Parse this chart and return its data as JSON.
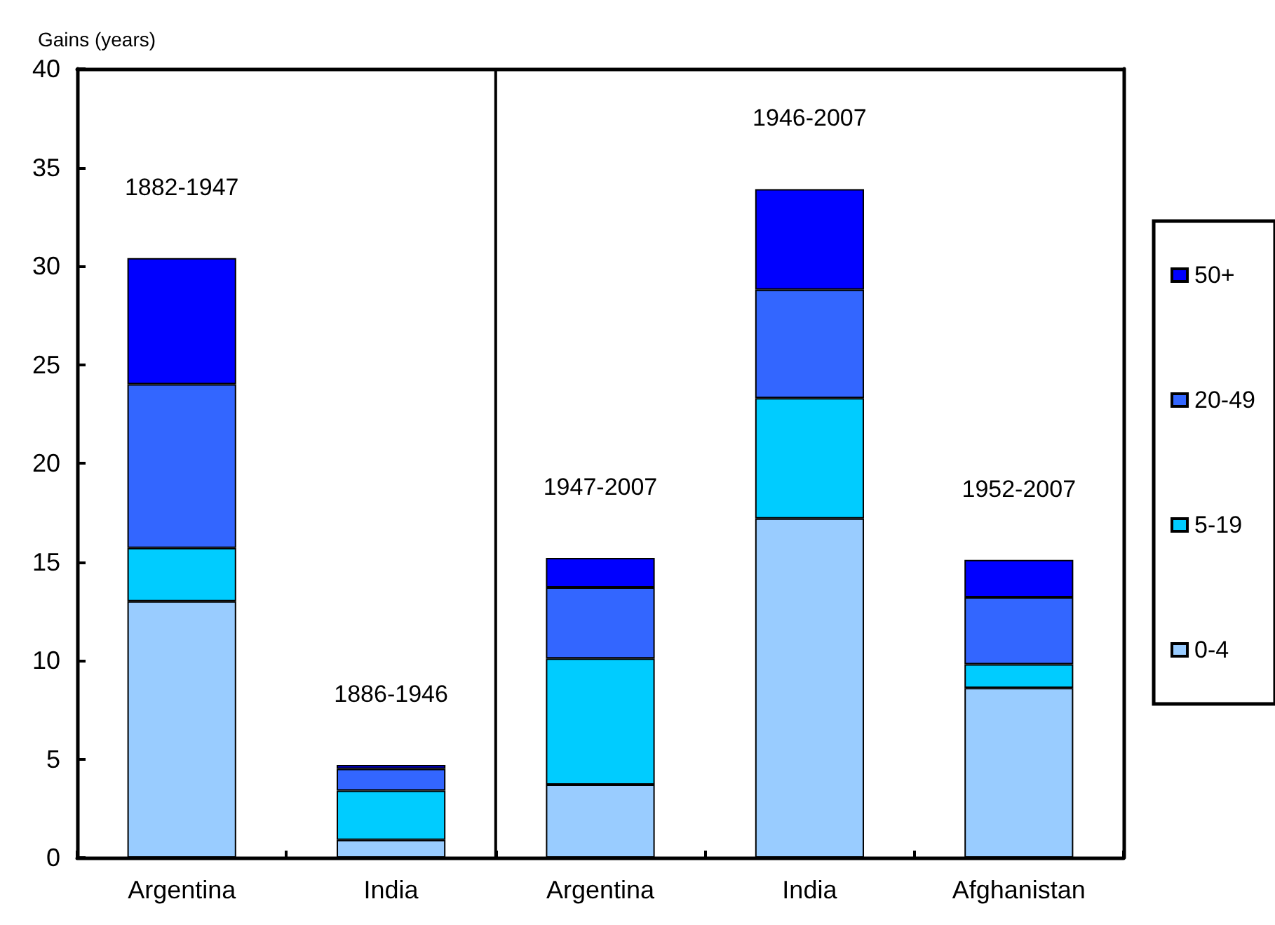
{
  "chart_data": {
    "type": "bar",
    "stacked": true,
    "ylabel": "Gains (years)",
    "categories": [
      "Argentina",
      "India",
      "Argentina",
      "India",
      "Afghanistan"
    ],
    "series": [
      {
        "name": "0-4",
        "color": "#99ccff",
        "values": [
          13.0,
          0.9,
          3.7,
          17.2,
          8.6
        ]
      },
      {
        "name": "5-19",
        "color": "#00ccff",
        "values": [
          2.7,
          2.5,
          6.4,
          6.1,
          1.2
        ]
      },
      {
        "name": "20-49",
        "color": "#3366ff",
        "values": [
          8.3,
          1.1,
          3.6,
          5.5,
          3.4
        ]
      },
      {
        "name": "50+",
        "color": "#0000ff",
        "values": [
          6.4,
          0.2,
          1.5,
          5.1,
          1.9
        ]
      }
    ],
    "annotations": [
      "1882-1947",
      "1886-1946",
      "1947-2007",
      "1946-2007",
      "1952-2007"
    ],
    "ylim": [
      0,
      40
    ],
    "yticks": [
      0,
      5,
      10,
      15,
      20,
      25,
      30,
      35,
      40
    ],
    "grid": false,
    "legend": "right"
  }
}
